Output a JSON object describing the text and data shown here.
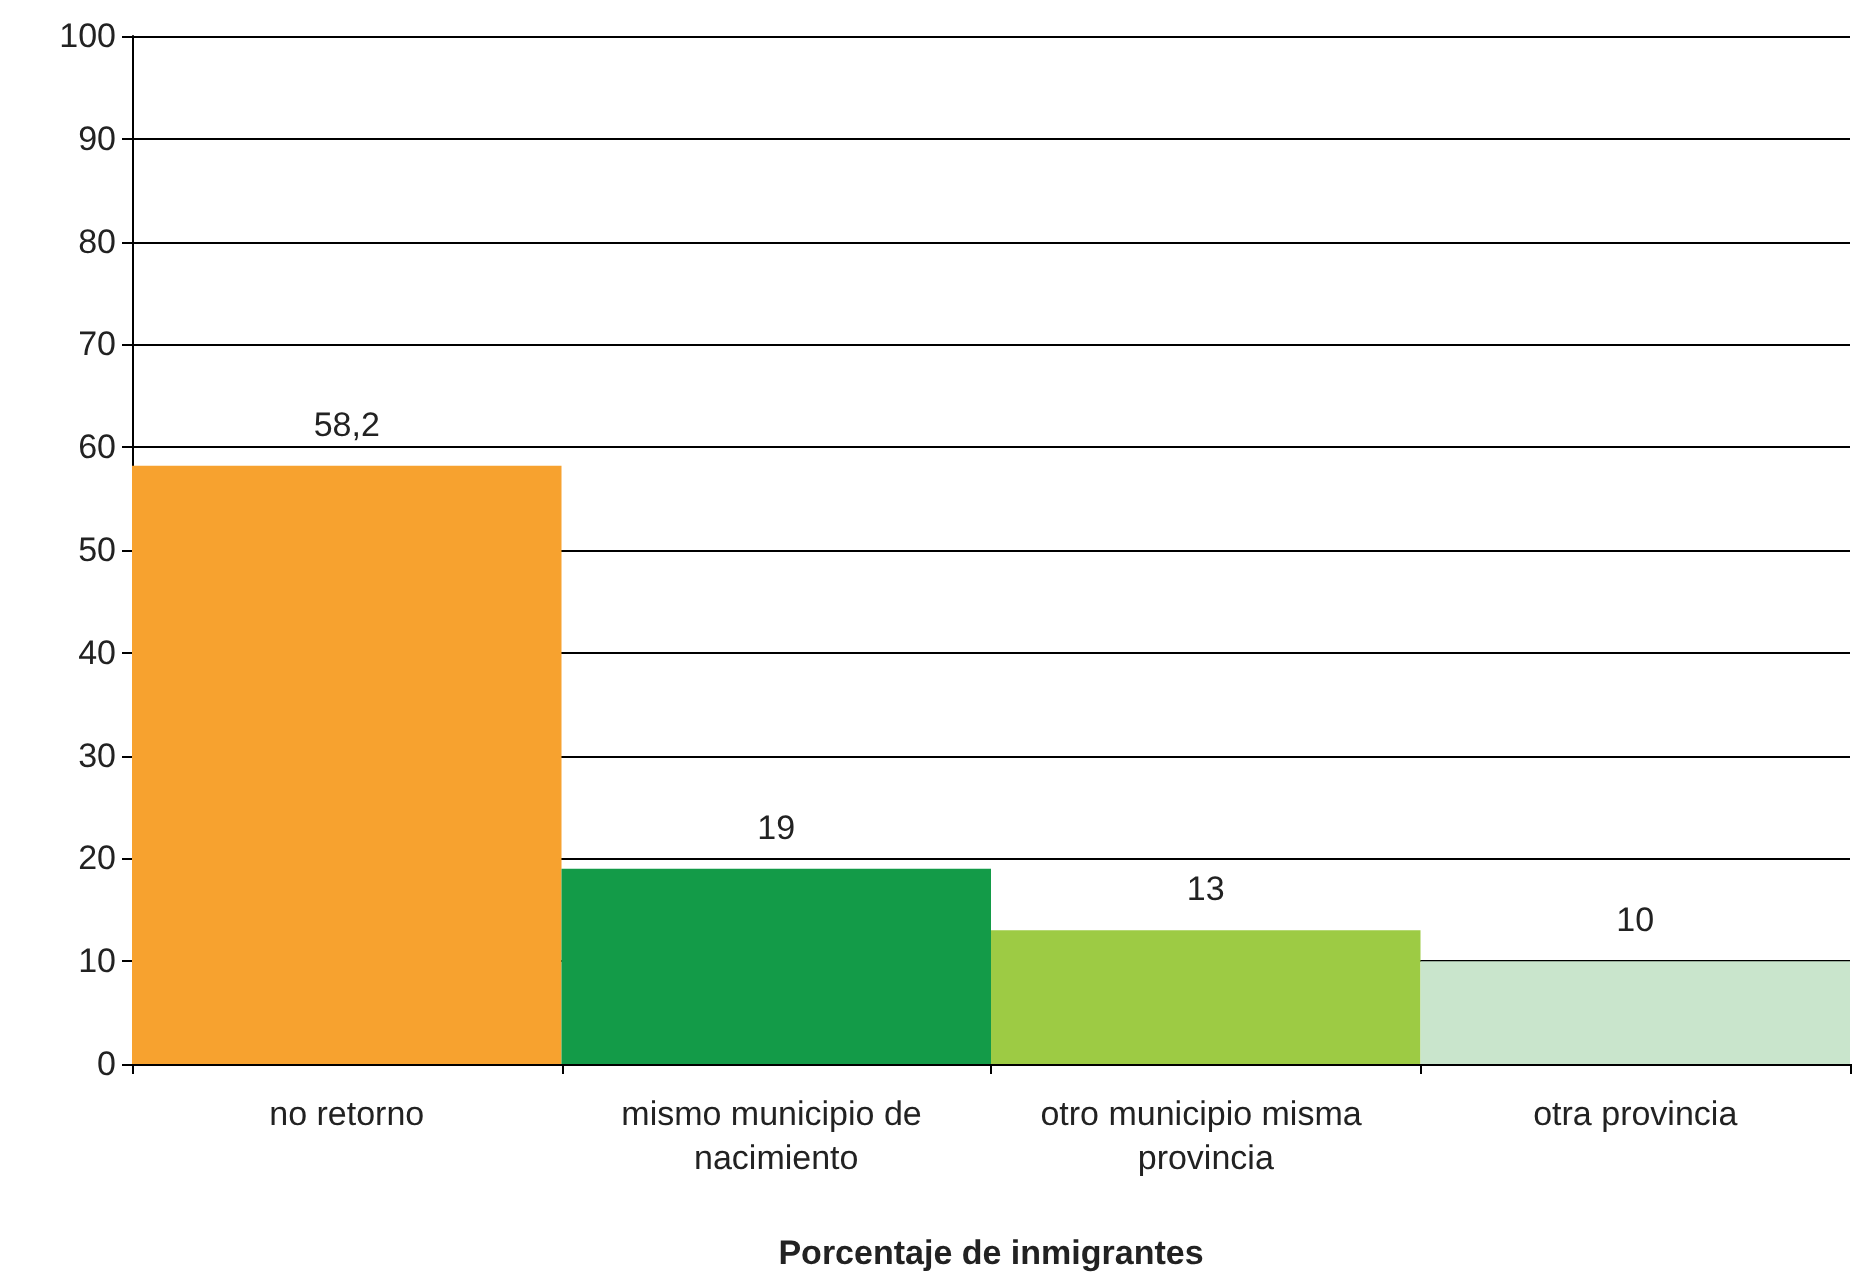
{
  "chart_data": {
    "type": "bar",
    "xlabel": "Porcentaje de inmigrantes",
    "categories": [
      "no retorno",
      "mismo municipio de nacimiento",
      "otro municipio misma provincia",
      "otra provincia"
    ],
    "values": [
      58.2,
      19,
      13,
      10
    ],
    "colors": [
      "#f7a22f",
      "#139b48",
      "#9dcb44",
      "#c9e5cc"
    ],
    "value_labels": [
      "58,2",
      "19",
      "13",
      "10"
    ],
    "ylim": [
      0,
      100
    ],
    "yticks": [
      0,
      10,
      20,
      30,
      40,
      50,
      60,
      70,
      80,
      90,
      100
    ],
    "grid": "y"
  }
}
